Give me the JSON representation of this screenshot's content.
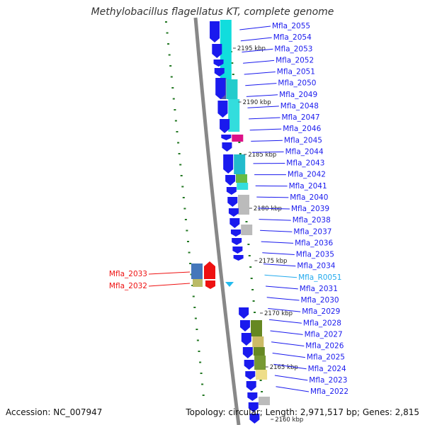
{
  "title": "Methylobacillus flagellatus KT, complete genome",
  "footer": {
    "accession": "Accession: NC_007947",
    "summary": "Topology: circular; Length: 2,971,517 bp; Genes: 2,815"
  },
  "colors": {
    "forward_gene": "#1a1aee",
    "reverse_gene": "#ee1111",
    "rna_gene": "#22bbee",
    "backbone": "#888888",
    "gc_tick": "#227722"
  },
  "ticks": [
    "2195 kbp",
    "2190 kbp",
    "2185 kbp",
    "2180 kbp",
    "2175 kbp",
    "2170 kbp",
    "2165 kbp",
    "2160 kbp"
  ],
  "labels_right": [
    {
      "text": "Mfla_2055",
      "kind": "gene"
    },
    {
      "text": "Mfla_2054",
      "kind": "gene"
    },
    {
      "text": "Mfla_2053",
      "kind": "gene"
    },
    {
      "text": "Mfla_2052",
      "kind": "gene"
    },
    {
      "text": "Mfla_2051",
      "kind": "gene"
    },
    {
      "text": "Mfla_2050",
      "kind": "gene"
    },
    {
      "text": "Mfla_2049",
      "kind": "gene"
    },
    {
      "text": "Mfla_2048",
      "kind": "gene"
    },
    {
      "text": "Mfla_2047",
      "kind": "gene"
    },
    {
      "text": "Mfla_2046",
      "kind": "gene"
    },
    {
      "text": "Mfla_2045",
      "kind": "gene"
    },
    {
      "text": "Mfla_2044",
      "kind": "gene"
    },
    {
      "text": "Mfla_2043",
      "kind": "gene"
    },
    {
      "text": "Mfla_2042",
      "kind": "gene"
    },
    {
      "text": "Mfla_2041",
      "kind": "gene"
    },
    {
      "text": "Mfla_2040",
      "kind": "gene"
    },
    {
      "text": "Mfla_2039",
      "kind": "gene"
    },
    {
      "text": "Mfla_2038",
      "kind": "gene"
    },
    {
      "text": "Mfla_2037",
      "kind": "gene"
    },
    {
      "text": "Mfla_2036",
      "kind": "gene"
    },
    {
      "text": "Mfla_2035",
      "kind": "gene"
    },
    {
      "text": "Mfla_2034",
      "kind": "gene"
    },
    {
      "text": "Mfla_R0051",
      "kind": "rna"
    },
    {
      "text": "Mfla_2031",
      "kind": "gene"
    },
    {
      "text": "Mfla_2030",
      "kind": "gene"
    },
    {
      "text": "Mfla_2029",
      "kind": "gene"
    },
    {
      "text": "Mfla_2028",
      "kind": "gene"
    },
    {
      "text": "Mfla_2027",
      "kind": "gene"
    },
    {
      "text": "Mfla_2026",
      "kind": "gene"
    },
    {
      "text": "Mfla_2025",
      "kind": "gene"
    },
    {
      "text": "Mfla_2024",
      "kind": "gene"
    },
    {
      "text": "Mfla_2023",
      "kind": "gene"
    },
    {
      "text": "Mfla_2022",
      "kind": "gene"
    }
  ],
  "labels_left": [
    {
      "text": "Mfla_2033",
      "kind": "reverse"
    },
    {
      "text": "Mfla_2032",
      "kind": "reverse"
    }
  ]
}
